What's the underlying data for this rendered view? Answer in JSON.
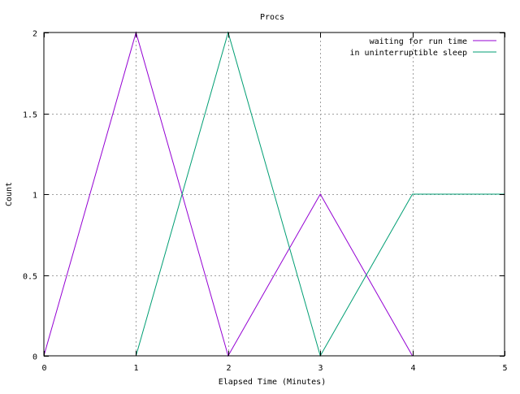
{
  "chart_data": {
    "type": "line",
    "title": "Procs",
    "xlabel": "Elapsed Time (Minutes)",
    "ylabel": "Count",
    "xlim": [
      0,
      5
    ],
    "ylim": [
      0,
      2
    ],
    "xticks": [
      0,
      1,
      2,
      3,
      4,
      5
    ],
    "xtick_labels": [
      "0",
      "1",
      "2",
      "3",
      "4",
      "5"
    ],
    "yticks": [
      0,
      0.5,
      1,
      1.5,
      2
    ],
    "ytick_labels": [
      "0",
      "0.5",
      "1",
      "1.5",
      "2"
    ],
    "grid": true,
    "legend_position": "top-right",
    "series": [
      {
        "name": "waiting for run time",
        "color": "#9400d3",
        "x": [
          0,
          1,
          2,
          3,
          4
        ],
        "y": [
          0,
          2,
          0,
          1,
          0
        ]
      },
      {
        "name": "in uninterruptible sleep",
        "color": "#009e73",
        "x": [
          1,
          2,
          3,
          4,
          5
        ],
        "y": [
          0,
          2,
          0,
          1,
          1
        ]
      }
    ]
  }
}
